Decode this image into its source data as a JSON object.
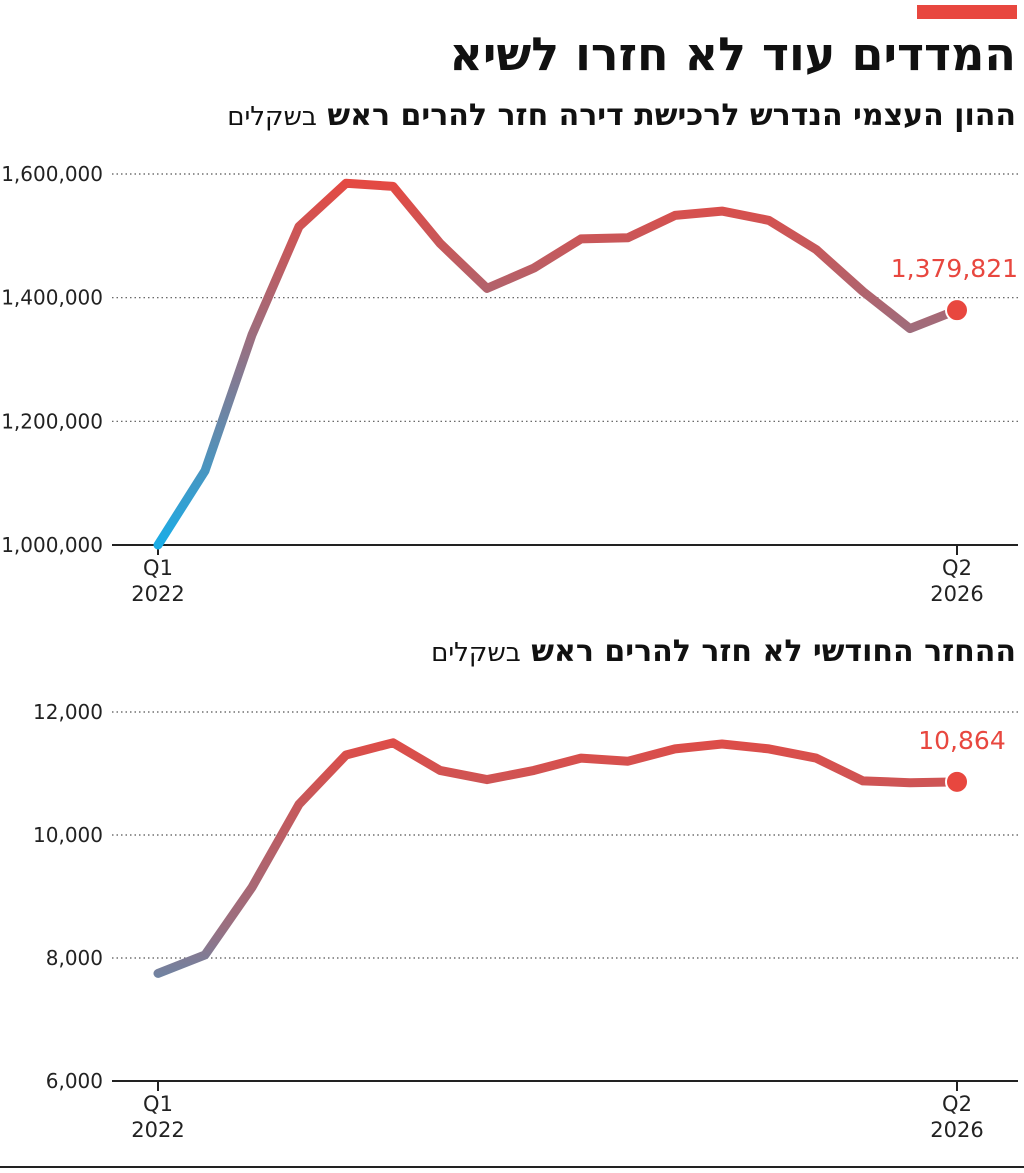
{
  "header": {
    "title": "המדדים עוד לא חזרו לשיא",
    "accent_color": "#e8473f"
  },
  "colors": {
    "start": "#1aace6",
    "end": "#e8473f",
    "axis": "#222222",
    "grid": "#555555"
  },
  "chart_data": [
    {
      "type": "line",
      "title": "ההון העצמי הנדרש לרכישת דירה חזר להרים ראש",
      "unit": "בשקלים",
      "x": [
        "Q1 2022",
        "Q2 2022",
        "Q3 2022",
        "Q4 2022",
        "Q1 2023",
        "Q2 2023",
        "Q3 2023",
        "Q4 2023",
        "Q1 2024",
        "Q2 2024",
        "Q3 2024",
        "Q4 2024",
        "Q1 2025",
        "Q2 2025",
        "Q3 2025",
        "Q4 2025",
        "Q1 2026",
        "Q2 2026"
      ],
      "values": [
        1000000,
        1120000,
        1340000,
        1515000,
        1585000,
        1580000,
        1488000,
        1415000,
        1448000,
        1495000,
        1497000,
        1533000,
        1540000,
        1525000,
        1478000,
        1410000,
        1350000,
        1379821
      ],
      "ylim": [
        1000000,
        1600000
      ],
      "yticks": [
        1000000,
        1200000,
        1400000,
        1600000
      ],
      "ytick_labels": [
        "1,000,000",
        "1,200,000",
        "1,400,000",
        "1,600,000"
      ],
      "xtick_labels": [
        {
          "quarter": "Q1",
          "year": "2022"
        },
        {
          "quarter": "Q2",
          "year": "2026"
        }
      ],
      "last_label": "1,379,821",
      "grid": true
    },
    {
      "type": "line",
      "title": "ההחזר החודשי לא חזר להרים ראש",
      "unit": "בשקלים",
      "x": [
        "Q1 2022",
        "Q2 2022",
        "Q3 2022",
        "Q4 2022",
        "Q1 2023",
        "Q2 2023",
        "Q3 2023",
        "Q4 2023",
        "Q1 2024",
        "Q2 2024",
        "Q3 2024",
        "Q4 2024",
        "Q1 2025",
        "Q2 2025",
        "Q3 2025",
        "Q4 2025",
        "Q1 2026",
        "Q2 2026"
      ],
      "values": [
        7750,
        8050,
        9150,
        10500,
        11300,
        11500,
        11050,
        10900,
        11050,
        11250,
        11200,
        11400,
        11480,
        11400,
        11250,
        10880,
        10850,
        10864
      ],
      "ylim": [
        6000,
        12000
      ],
      "yticks": [
        6000,
        8000,
        10000,
        12000
      ],
      "ytick_labels": [
        "6,000",
        "8,000",
        "10,000",
        "12,000"
      ],
      "xtick_labels": [
        {
          "quarter": "Q1",
          "year": "2022"
        },
        {
          "quarter": "Q2",
          "year": "2026"
        }
      ],
      "last_label": "10,864",
      "grid": true
    }
  ]
}
